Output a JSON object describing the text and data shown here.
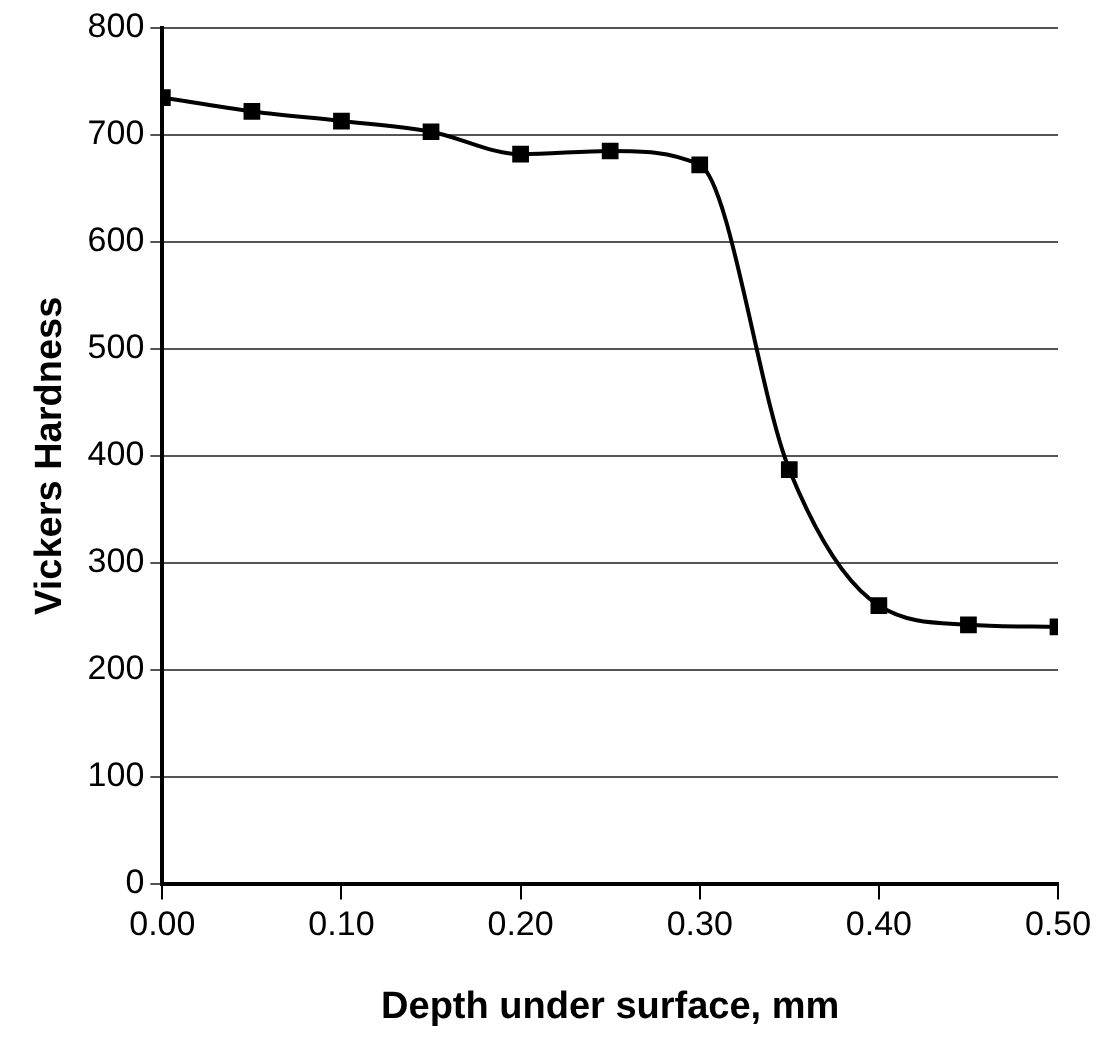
{
  "chart_data": {
    "type": "line",
    "xlabel": "Depth under surface, mm",
    "ylabel": "Vickers Hardness",
    "x": [
      0,
      0.05,
      0.1,
      0.15,
      0.2,
      0.25,
      0.3,
      0.35,
      0.4,
      0.45,
      0.5
    ],
    "series": [
      {
        "color": "#000000",
        "values": [
          735,
          722,
          713,
          703,
          682,
          685,
          672,
          387,
          260,
          242,
          240
        ]
      }
    ],
    "xlim": [
      0,
      0.5
    ],
    "xticks": [
      {
        "value": 0,
        "label": "0.00"
      },
      {
        "value": 0.1,
        "label": "0.10"
      },
      {
        "value": 0.2,
        "label": "0.20"
      },
      {
        "value": 0.3,
        "label": "0.30"
      },
      {
        "value": 0.4,
        "label": "0.40"
      },
      {
        "value": 0.5,
        "label": "0.50"
      }
    ],
    "ylim": [
      0,
      800
    ],
    "yticks": [
      0,
      100,
      200,
      300,
      400,
      500,
      600,
      700,
      800
    ],
    "grid": "y",
    "marker": "square",
    "line_style": "solid",
    "legend": false
  }
}
